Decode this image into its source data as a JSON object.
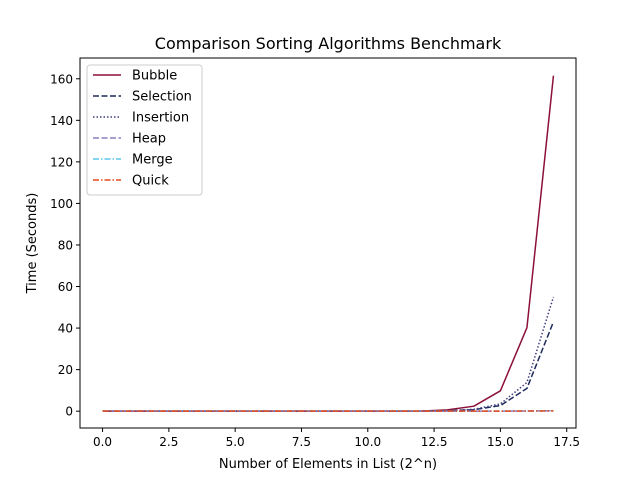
{
  "chart_data": {
    "type": "line",
    "title": "Comparison Sorting Algorithms Benchmark",
    "xlabel": "Number of Elements in List (2^n)",
    "ylabel": "Time (Seconds)",
    "xlim": [
      -0.85,
      17.85
    ],
    "ylim": [
      -8.1,
      170
    ],
    "xticks": [
      0.0,
      2.5,
      5.0,
      7.5,
      10.0,
      12.5,
      15.0,
      17.5
    ],
    "xtick_labels": [
      "0.0",
      "2.5",
      "5.0",
      "7.5",
      "10.0",
      "12.5",
      "15.0",
      "17.5"
    ],
    "yticks": [
      0,
      20,
      40,
      60,
      80,
      100,
      120,
      140,
      160
    ],
    "ytick_labels": [
      "0",
      "20",
      "40",
      "60",
      "80",
      "100",
      "120",
      "140",
      "160"
    ],
    "grid": false,
    "legend_position": "top-left",
    "x": [
      0,
      1,
      2,
      3,
      4,
      5,
      6,
      7,
      8,
      9,
      10,
      11,
      12,
      13,
      14,
      15,
      16,
      17
    ],
    "series": [
      {
        "name": "Bubble",
        "color": "#8b1038",
        "dash": "solid",
        "values": [
          0,
          0,
          0,
          0,
          0,
          0,
          0,
          0,
          0,
          0,
          0,
          0,
          0.04,
          0.6,
          2.4,
          9.8,
          40.2,
          161.5
        ]
      },
      {
        "name": "Selection",
        "color": "#1e2a5a",
        "dash": "dashed",
        "values": [
          0,
          0,
          0,
          0,
          0,
          0,
          0,
          0,
          0,
          0,
          0,
          0,
          0.02,
          0.2,
          0.7,
          2.7,
          11.0,
          43.0
        ]
      },
      {
        "name": "Insertion",
        "color": "#3d3d7c",
        "dash": "dotted",
        "values": [
          0,
          0,
          0,
          0,
          0,
          0,
          0,
          0,
          0,
          0,
          0,
          0,
          0.02,
          0.2,
          0.9,
          3.5,
          13.8,
          55.0
        ]
      },
      {
        "name": "Heap",
        "color": "#8c7fc4",
        "dash": "dashed",
        "values": [
          0,
          0,
          0,
          0,
          0,
          0,
          0,
          0,
          0,
          0,
          0,
          0,
          0,
          0,
          0.02,
          0.05,
          0.1,
          0.2
        ]
      },
      {
        "name": "Merge",
        "color": "#5bc8eb",
        "dash": "dashdot",
        "values": [
          0,
          0,
          0,
          0,
          0,
          0,
          0,
          0,
          0,
          0,
          0,
          0,
          0,
          0,
          0.02,
          0.04,
          0.08,
          0.17
        ]
      },
      {
        "name": "Quick",
        "color": "#e8481a",
        "dash": "dashdot",
        "values": [
          0,
          0,
          0,
          0,
          0,
          0,
          0,
          0,
          0,
          0,
          0,
          0,
          0,
          0,
          0.01,
          0.03,
          0.06,
          0.12
        ]
      }
    ]
  }
}
